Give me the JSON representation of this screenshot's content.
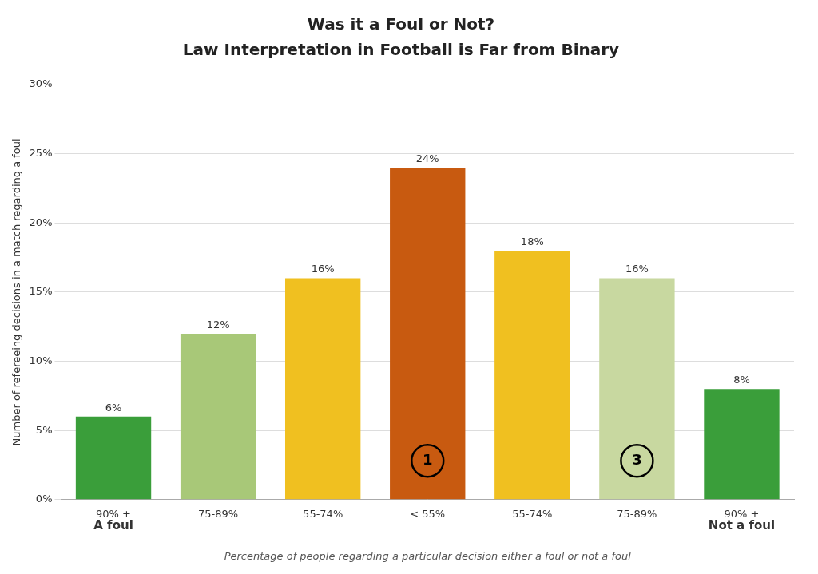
{
  "chart_data": {
    "type": "bar",
    "title": "Was it a Foul or Not?",
    "subtitle": "Law Interpretation in Football is Far from Binary",
    "categories": [
      "90% +",
      "75-89%",
      "55-74%",
      "< 55%",
      "55-74%",
      "75-89%",
      "90% +"
    ],
    "values": [
      6,
      12,
      16,
      24,
      18,
      16,
      8
    ],
    "value_labels": [
      "6%",
      "12%",
      "16%",
      "24%",
      "18%",
      "16%",
      "8%"
    ],
    "data_labels": true,
    "colors": [
      "#3a9e3a",
      "#a8c878",
      "#f0c020",
      "#c85a10",
      "#f0c020",
      "#c8d8a0",
      "#3a9e3a"
    ],
    "xlabel": "Percentage of people regarding a particular decision either a foul or not a foul",
    "ylabel": "Number of refereeing decisions in a match regarding a foul",
    "ylim": [
      0,
      30
    ],
    "yticks": [
      {
        "value": 0,
        "label": "0%"
      },
      {
        "value": 5,
        "label": "5%"
      },
      {
        "value": 10,
        "label": "10%"
      },
      {
        "value": 15,
        "label": "15%"
      },
      {
        "value": 20,
        "label": "20%"
      },
      {
        "value": 25,
        "label": "25%"
      },
      {
        "value": 30,
        "label": "30%"
      }
    ],
    "grid": true,
    "annotations": [
      {
        "text": "1",
        "bar": 3,
        "y": 2.8,
        "marker": "circle"
      },
      {
        "text": "3",
        "bar": 5,
        "y": 2.8,
        "marker": "circle"
      },
      {
        "text": "A foul",
        "bar": 0
      },
      {
        "text": "Not a foul",
        "bar": 6
      }
    ]
  }
}
